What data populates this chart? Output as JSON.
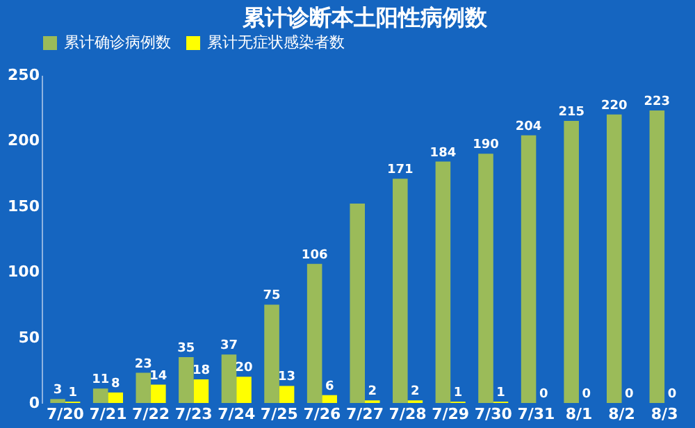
{
  "chart_data": {
    "type": "bar",
    "title": "累计诊断本土阳性病例数",
    "categories": [
      "7/20",
      "7/21",
      "7/22",
      "7/23",
      "7/24",
      "7/25",
      "7/26",
      "7/27",
      "7/28",
      "7/29",
      "7/30",
      "7/31",
      "8/1",
      "8/2",
      "8/3"
    ],
    "series": [
      {
        "name": "累计确诊病例数",
        "color": "#9bbb59",
        "values": [
          3,
          11,
          23,
          35,
          37,
          75,
          106,
          152,
          171,
          184,
          190,
          204,
          215,
          220,
          223
        ],
        "value_labels": [
          "3",
          "11",
          "23",
          "35",
          "37",
          "75",
          "106",
          null,
          "171",
          "184",
          "190",
          "204",
          "215",
          "220",
          "223"
        ]
      },
      {
        "name": "累计无症状感染者数",
        "color": "#ffff00",
        "values": [
          1,
          8,
          14,
          18,
          20,
          13,
          6,
          2,
          2,
          1,
          1,
          0,
          0,
          0,
          0
        ],
        "value_labels": [
          "1",
          "8",
          "14",
          "18",
          "20",
          "13",
          "6",
          "2",
          "2",
          "1",
          "1",
          "0",
          "0",
          "0",
          "0"
        ]
      }
    ],
    "ylim": [
      0,
      250
    ],
    "yticks": [
      0,
      50,
      100,
      150,
      200,
      250
    ],
    "grid": false,
    "legend": "top"
  }
}
